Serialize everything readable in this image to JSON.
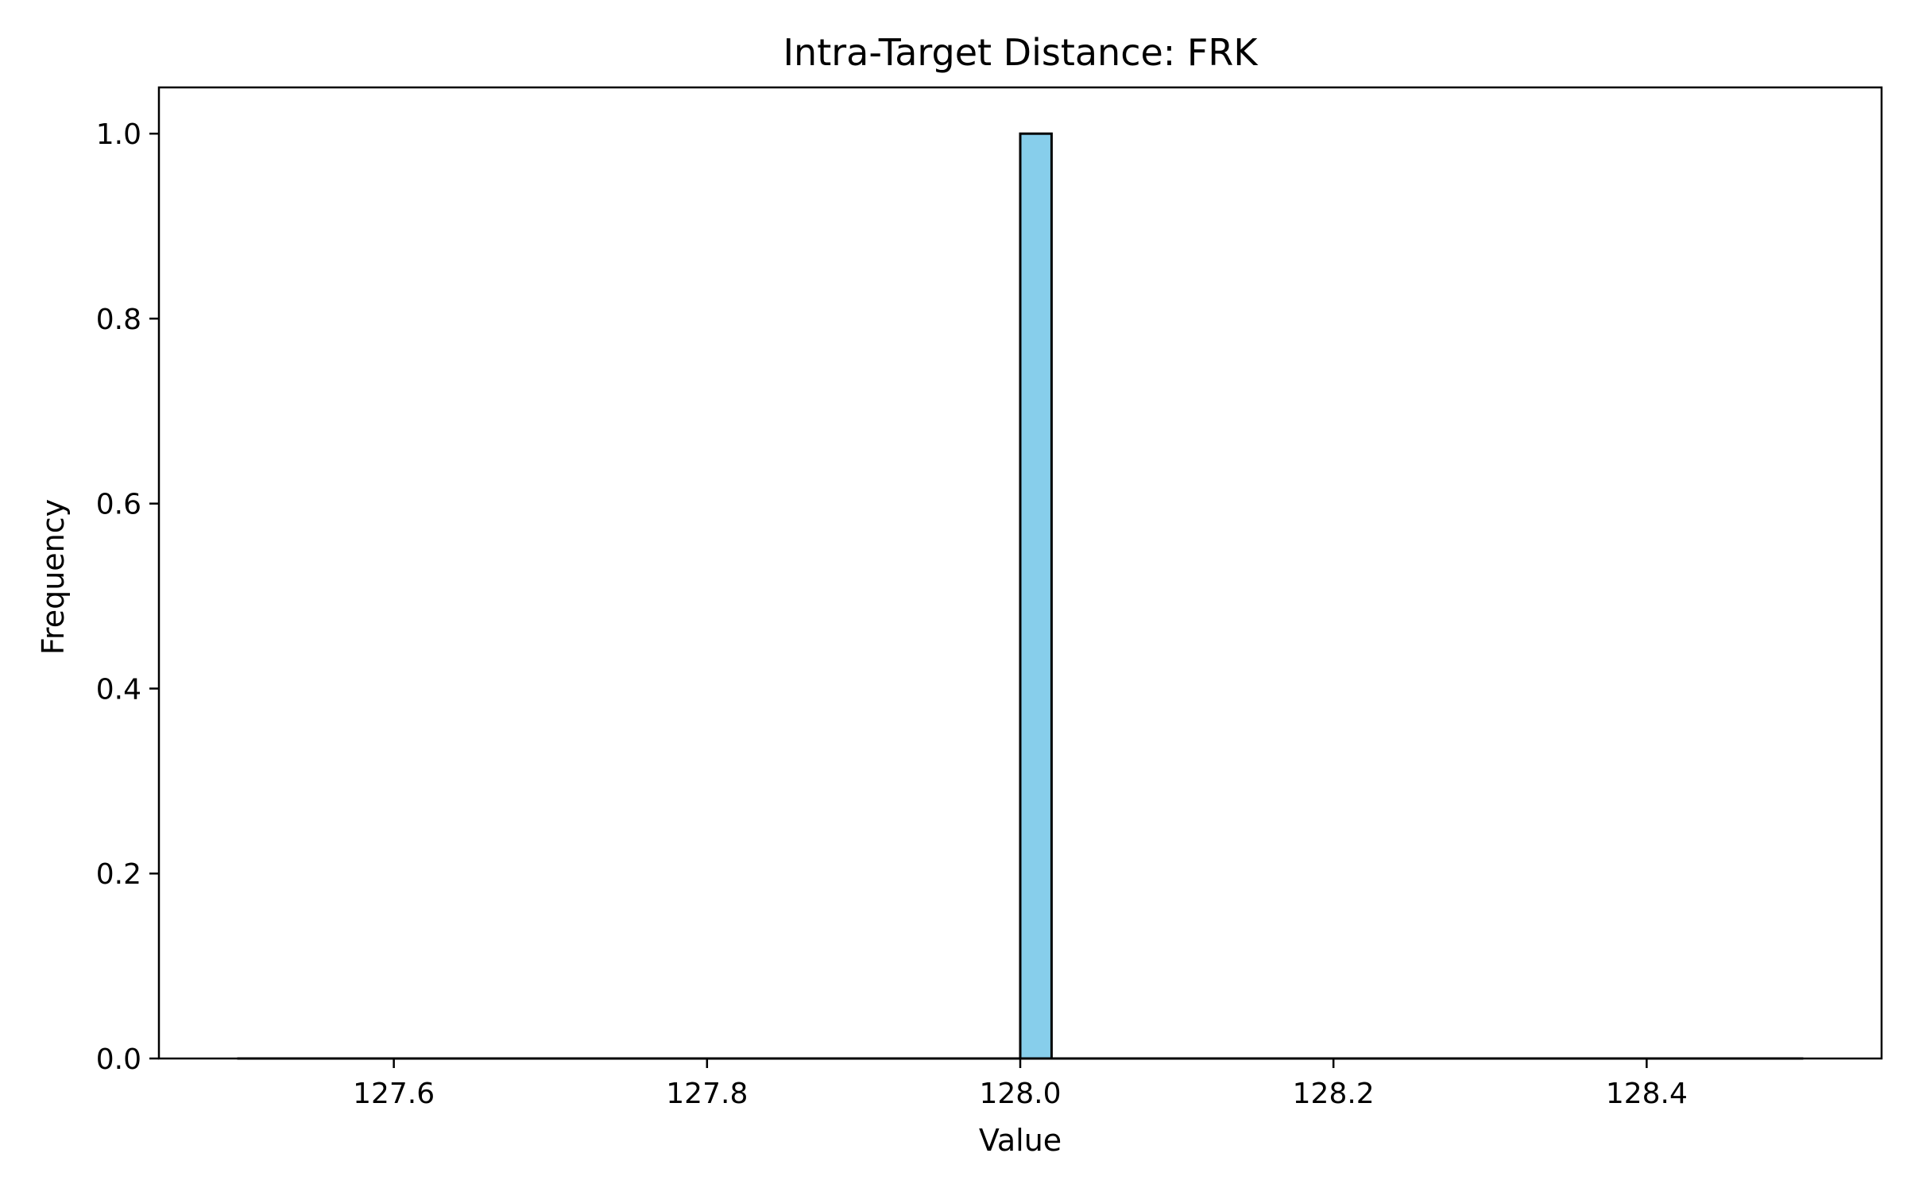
{
  "chart_data": {
    "type": "bar",
    "title": "Intra-Target Distance: FRK",
    "xlabel": "Value",
    "ylabel": "Frequency",
    "xlim": [
      127.45,
      128.55
    ],
    "ylim": [
      0.0,
      1.05
    ],
    "xticks": [
      "127.6",
      "127.8",
      "128.0",
      "128.2",
      "128.4"
    ],
    "xtick_values": [
      127.6,
      127.8,
      128.0,
      128.2,
      128.4
    ],
    "yticks": [
      "0.0",
      "0.2",
      "0.4",
      "0.6",
      "0.8",
      "1.0"
    ],
    "ytick_values": [
      0.0,
      0.2,
      0.4,
      0.6,
      0.8,
      1.0
    ],
    "bins_range": [
      127.5,
      128.5
    ],
    "bin_count": 50,
    "bars": [
      {
        "x_start": 128.0,
        "x_end": 128.02,
        "value": 1.0
      }
    ],
    "bar_color": "#87CEEB",
    "edge_color": "#000000",
    "grid": false,
    "legend": false
  }
}
